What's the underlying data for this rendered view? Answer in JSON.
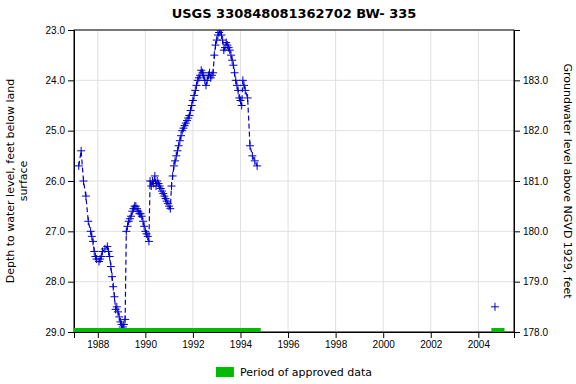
{
  "chart_data": {
    "type": "line",
    "title": "USGS 330848081362702 BW- 335",
    "ylabel": "Depth to water level, feet below land\nsurface",
    "y2label": "Groundwater level above NGVD 1929, feet",
    "xlim": [
      1987.0,
      2005.5
    ],
    "xticks": [
      1988,
      1990,
      1992,
      1994,
      1996,
      1998,
      2000,
      2002,
      2004
    ],
    "ylim": [
      29.0,
      23.0
    ],
    "yticks": [
      {
        "value": 23.0,
        "label": "23.0"
      },
      {
        "value": 24.0,
        "label": "24.0"
      },
      {
        "value": 25.0,
        "label": "25.0"
      },
      {
        "value": 26.0,
        "label": "26.0"
      },
      {
        "value": 27.0,
        "label": "27.0"
      },
      {
        "value": 28.0,
        "label": "28.0"
      },
      {
        "value": 29.0,
        "label": "29.0"
      }
    ],
    "y2lim": [
      178.0,
      184.0
    ],
    "y2ticks": [
      {
        "value": 178.0,
        "label": "178.0"
      },
      {
        "value": 179.0,
        "label": "179.0"
      },
      {
        "value": 180.0,
        "label": "180.0"
      },
      {
        "value": 181.0,
        "label": "181.0"
      },
      {
        "value": 182.0,
        "label": "182.0"
      },
      {
        "value": 183.0,
        "label": "183.0"
      }
    ],
    "grid": true,
    "legend": "bottom",
    "x": [
      1987.2,
      1987.3,
      1987.4,
      1987.5,
      1987.6,
      1987.7,
      1987.75,
      1987.8,
      1987.85,
      1987.9,
      1987.95,
      1988.05,
      1988.1,
      1988.15,
      1988.2,
      1988.3,
      1988.4,
      1988.45,
      1988.5,
      1988.55,
      1988.6,
      1988.65,
      1988.7,
      1988.75,
      1988.8,
      1988.85,
      1988.9,
      1988.95,
      1989.0,
      1989.05,
      1989.1,
      1989.15,
      1989.2,
      1989.25,
      1989.3,
      1989.35,
      1989.4,
      1989.45,
      1989.5,
      1989.55,
      1989.6,
      1989.65,
      1989.7,
      1989.75,
      1989.8,
      1989.85,
      1989.9,
      1989.95,
      1990.0,
      1990.05,
      1990.1,
      1990.15,
      1990.2,
      1990.25,
      1990.3,
      1990.35,
      1990.4,
      1990.45,
      1990.5,
      1990.55,
      1990.6,
      1990.65,
      1990.7,
      1990.75,
      1990.8,
      1990.85,
      1990.9,
      1990.95,
      1991.0,
      1991.05,
      1991.1,
      1991.15,
      1991.2,
      1991.25,
      1991.3,
      1991.35,
      1991.4,
      1991.45,
      1991.5,
      1991.55,
      1991.6,
      1991.65,
      1991.7,
      1991.75,
      1991.8,
      1991.85,
      1991.9,
      1991.95,
      1992.0,
      1992.05,
      1992.1,
      1992.15,
      1992.2,
      1992.25,
      1992.3,
      1992.35,
      1992.4,
      1992.45,
      1992.5,
      1992.55,
      1992.6,
      1992.65,
      1992.7,
      1992.75,
      1992.8,
      1992.85,
      1992.9,
      1992.95,
      1993.0,
      1993.05,
      1993.1,
      1993.15,
      1993.2,
      1993.25,
      1993.3,
      1993.35,
      1993.4,
      1993.45,
      1993.5,
      1993.55,
      1993.6,
      1993.65,
      1993.7,
      1993.75,
      1993.8,
      1993.85,
      1993.9,
      1993.95,
      1994.0,
      1994.05,
      1994.1,
      1994.15,
      1994.2,
      1994.3,
      1994.4,
      1994.5,
      1994.6,
      1994.7,
      null,
      2004.7
    ],
    "series": [
      {
        "color": "#0000cc",
        "type": "line",
        "line_style": "dashed",
        "marker": "plus",
        "values": [
          25.7,
          25.4,
          26.0,
          26.3,
          26.8,
          27.0,
          27.1,
          27.2,
          27.4,
          27.5,
          27.55,
          27.6,
          27.55,
          27.5,
          27.4,
          27.35,
          27.3,
          27.4,
          27.5,
          27.7,
          27.9,
          28.1,
          28.3,
          28.55,
          28.5,
          28.6,
          28.7,
          28.8,
          28.85,
          28.9,
          28.85,
          28.75,
          27.0,
          26.9,
          26.8,
          26.75,
          26.7,
          26.6,
          26.55,
          26.5,
          26.5,
          26.55,
          26.6,
          26.65,
          26.65,
          26.7,
          26.8,
          26.9,
          27.0,
          27.05,
          27.1,
          27.2,
          26.0,
          26.1,
          26.0,
          26.05,
          25.9,
          26.1,
          26.0,
          26.05,
          26.1,
          26.15,
          26.2,
          26.25,
          26.3,
          26.35,
          26.4,
          26.45,
          26.5,
          26.55,
          26.1,
          25.9,
          25.7,
          25.6,
          25.5,
          25.4,
          25.3,
          25.2,
          25.1,
          25.0,
          24.95,
          24.9,
          24.85,
          24.8,
          24.75,
          24.7,
          24.6,
          24.5,
          24.4,
          24.3,
          24.2,
          24.1,
          24.0,
          23.95,
          23.9,
          23.8,
          23.85,
          23.9,
          24.0,
          24.1,
          24.0,
          23.9,
          23.85,
          23.95,
          23.9,
          23.85,
          23.5,
          23.3,
          23.2,
          23.1,
          23.05,
          23.0,
          23.1,
          23.2,
          23.4,
          23.35,
          23.25,
          23.3,
          23.35,
          23.4,
          23.5,
          23.6,
          23.7,
          23.85,
          24.0,
          24.1,
          24.2,
          24.35,
          24.4,
          24.5,
          24.0,
          24.1,
          24.2,
          24.35,
          25.3,
          25.5,
          25.6,
          25.7,
          null,
          28.5
        ]
      },
      {
        "name": "Period of approved data",
        "color": "#00bb00",
        "type": "bar",
        "values": [
          [
            1987.0,
            1994.85
          ],
          [
            2004.55,
            2005.1
          ]
        ]
      }
    ]
  }
}
